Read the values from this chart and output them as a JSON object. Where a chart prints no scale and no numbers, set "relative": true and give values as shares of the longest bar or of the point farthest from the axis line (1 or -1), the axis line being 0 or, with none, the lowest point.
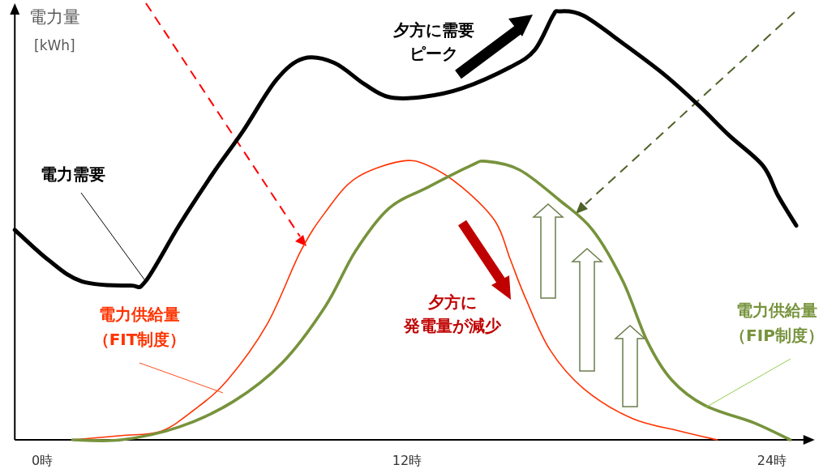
{
  "chart_data": {
    "type": "line",
    "relative": true,
    "ylabel": "電力量 [kWh]",
    "xlim": [
      -0.9,
      25.3
    ],
    "xticks": [
      {
        "value": 0,
        "label": "0時"
      },
      {
        "value": 12,
        "label": "12時"
      },
      {
        "value": 24,
        "label": "24時"
      }
    ],
    "tick_labels": "x",
    "grid": false,
    "legend": false,
    "marker": "none",
    "line_style": "solid",
    "series": [
      {
        "name": "電力需要",
        "color": "#000000",
        "x": [
          -0.9,
          0.2,
          1.3,
          2.9,
          3.4,
          4.5,
          5.6,
          6.6,
          7.7,
          8.6,
          9.6,
          10.6,
          11.4,
          12.5,
          13.8,
          15.4,
          16.2,
          16.8,
          17.0,
          17.8,
          19.2,
          20.5,
          21.6,
          22.6,
          23.7,
          24.2,
          24.8
        ],
        "values": [
          0.49,
          0.42,
          0.37,
          0.36,
          0.37,
          0.5,
          0.62,
          0.72,
          0.84,
          0.89,
          0.88,
          0.83,
          0.8,
          0.8,
          0.82,
          0.87,
          0.91,
          0.99,
          1.0,
          0.99,
          0.92,
          0.85,
          0.78,
          0.71,
          0.64,
          0.57,
          0.5
        ]
      },
      {
        "name": "電力供給量（FIT制度）",
        "color": "#ff3300",
        "x": [
          1.0,
          2.6,
          3.9,
          5.0,
          6.1,
          7.4,
          8.5,
          9.3,
          10.3,
          11.8,
          12.7,
          13.8,
          14.9,
          15.4,
          15.9,
          16.7,
          17.8,
          19.4,
          21.0,
          22.2
        ],
        "values": [
          0,
          0.01,
          0.02,
          0.07,
          0.14,
          0.27,
          0.44,
          0.53,
          0.61,
          0.65,
          0.64,
          0.59,
          0.51,
          0.42,
          0.33,
          0.21,
          0.12,
          0.05,
          0.02,
          0
        ]
      },
      {
        "name": "電力供給量（FIP制度）",
        "color": "#77933c",
        "x": [
          1.0,
          2.6,
          4.5,
          6.3,
          7.9,
          9.3,
          10.3,
          11.4,
          12.7,
          14.1,
          14.6,
          15.7,
          17.0,
          18.1,
          19.1,
          19.9,
          20.7,
          21.8,
          23.4,
          24.6
        ],
        "values": [
          0,
          0,
          0.03,
          0.09,
          0.18,
          0.31,
          0.44,
          0.54,
          0.59,
          0.64,
          0.65,
          0.63,
          0.56,
          0.49,
          0.37,
          0.23,
          0.14,
          0.08,
          0.04,
          0
        ]
      }
    ],
    "annotations": [
      "夕方に需要ピーク",
      "夕方に発電量が減少"
    ]
  }
}
